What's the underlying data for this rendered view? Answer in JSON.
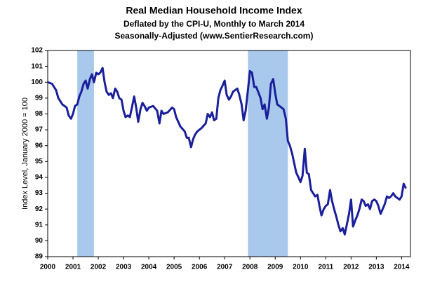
{
  "chart_data": {
    "type": "line",
    "title": "Real Median Household Income Index",
    "subtitle": "Deflated by the CPI-U, Monthly to March 2014",
    "subtitle2": "Seasonally-Adjusted (www.SentierResearch.com)",
    "y_label": "Index Level, January 2000 = 100",
    "xlim": [
      2000,
      2014.35
    ],
    "ylim": [
      89,
      102
    ],
    "xticks": [
      2000,
      2001,
      2002,
      2003,
      2004,
      2005,
      2006,
      2007,
      2008,
      2009,
      2010,
      2011,
      2012,
      2013,
      2014
    ],
    "yticks": [
      89,
      90,
      91,
      92,
      93,
      94,
      95,
      96,
      97,
      98,
      99,
      100,
      101,
      102
    ],
    "shaded_ranges": [
      [
        2001.17,
        2001.83
      ],
      [
        2007.92,
        2009.5
      ]
    ],
    "shade_color": "#a8c8ec",
    "series": [
      {
        "color": "#1a1f9a",
        "x": [
          2000.0,
          2000.17,
          2000.33,
          2000.42,
          2000.58,
          2000.75,
          2000.83,
          2000.92,
          2001.0,
          2001.08,
          2001.17,
          2001.25,
          2001.33,
          2001.42,
          2001.5,
          2001.58,
          2001.67,
          2001.75,
          2001.83,
          2001.92,
          2002.0,
          2002.08,
          2002.17,
          2002.25,
          2002.33,
          2002.42,
          2002.5,
          2002.58,
          2002.67,
          2002.75,
          2002.83,
          2002.92,
          2003.0,
          2003.08,
          2003.17,
          2003.25,
          2003.33,
          2003.42,
          2003.5,
          2003.58,
          2003.67,
          2003.75,
          2003.83,
          2003.92,
          2004.0,
          2004.17,
          2004.33,
          2004.42,
          2004.5,
          2004.58,
          2004.75,
          2004.92,
          2005.0,
          2005.08,
          2005.25,
          2005.42,
          2005.5,
          2005.58,
          2005.67,
          2005.75,
          2005.83,
          2005.92,
          2006.08,
          2006.25,
          2006.33,
          2006.42,
          2006.5,
          2006.58,
          2006.67,
          2006.75,
          2006.83,
          2006.92,
          2007.0,
          2007.08,
          2007.17,
          2007.25,
          2007.33,
          2007.5,
          2007.58,
          2007.67,
          2007.75,
          2007.83,
          2007.92,
          2008.0,
          2008.08,
          2008.17,
          2008.25,
          2008.42,
          2008.5,
          2008.58,
          2008.67,
          2008.75,
          2008.83,
          2008.92,
          2009.0,
          2009.08,
          2009.25,
          2009.33,
          2009.42,
          2009.5,
          2009.58,
          2009.67,
          2009.75,
          2009.83,
          2009.92,
          2010.0,
          2010.08,
          2010.17,
          2010.25,
          2010.33,
          2010.42,
          2010.5,
          2010.58,
          2010.67,
          2010.75,
          2010.83,
          2010.92,
          2011.0,
          2011.08,
          2011.17,
          2011.25,
          2011.33,
          2011.42,
          2011.5,
          2011.58,
          2011.67,
          2011.75,
          2011.83,
          2011.92,
          2012.0,
          2012.08,
          2012.17,
          2012.25,
          2012.33,
          2012.42,
          2012.5,
          2012.58,
          2012.67,
          2012.75,
          2012.83,
          2012.92,
          2013.0,
          2013.08,
          2013.17,
          2013.25,
          2013.33,
          2013.42,
          2013.5,
          2013.58,
          2013.67,
          2013.75,
          2013.83,
          2013.92,
          2014.0,
          2014.08,
          2014.17
        ],
        "values": [
          100.0,
          99.9,
          99.5,
          99.0,
          98.6,
          98.4,
          97.9,
          97.7,
          98.0,
          98.5,
          98.6,
          99.1,
          99.4,
          99.9,
          100.1,
          99.6,
          100.2,
          100.5,
          100.0,
          100.6,
          100.5,
          100.6,
          100.9,
          100.0,
          99.4,
          99.2,
          99.3,
          99.0,
          99.6,
          99.4,
          99.0,
          98.9,
          98.2,
          97.8,
          97.9,
          97.8,
          98.4,
          99.1,
          98.4,
          97.5,
          98.3,
          98.7,
          98.5,
          98.2,
          98.4,
          98.5,
          98.2,
          97.4,
          98.2,
          98.0,
          98.1,
          98.4,
          98.3,
          97.8,
          97.2,
          96.9,
          96.5,
          96.5,
          95.9,
          96.4,
          96.7,
          96.9,
          97.1,
          97.4,
          98.0,
          97.8,
          98.1,
          97.6,
          97.7,
          99.0,
          99.5,
          99.8,
          100.1,
          99.2,
          98.9,
          99.1,
          99.4,
          99.6,
          99.2,
          98.6,
          97.6,
          98.2,
          99.5,
          100.7,
          100.6,
          99.7,
          99.7,
          99.0,
          98.3,
          98.6,
          97.7,
          98.4,
          99.9,
          100.2,
          99.3,
          98.6,
          98.4,
          98.3,
          97.7,
          96.3,
          96.0,
          95.5,
          94.9,
          94.3,
          94.0,
          93.7,
          94.1,
          95.8,
          94.3,
          94.2,
          93.2,
          93.0,
          92.8,
          92.9,
          92.2,
          91.6,
          92.0,
          92.2,
          92.3,
          93.2,
          92.5,
          92.0,
          91.5,
          91.0,
          90.6,
          90.8,
          90.4,
          91.0,
          91.7,
          92.6,
          90.9,
          91.3,
          91.6,
          92.0,
          92.6,
          92.5,
          92.2,
          92.3,
          92.0,
          92.5,
          92.6,
          92.5,
          92.2,
          91.7,
          92.0,
          92.3,
          92.8,
          92.7,
          92.8,
          93.0,
          92.8,
          92.7,
          92.6,
          92.8,
          93.6,
          93.3
        ]
      }
    ]
  }
}
